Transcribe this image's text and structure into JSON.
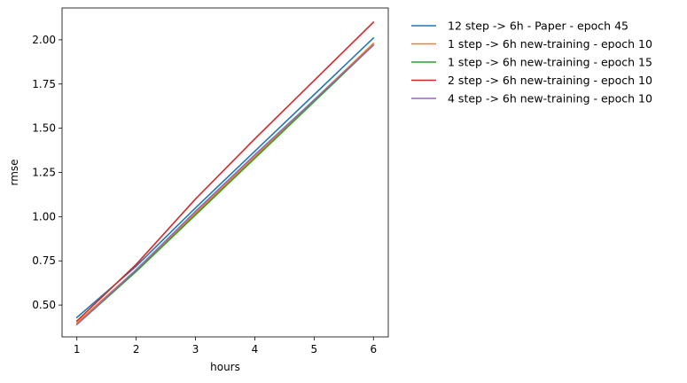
{
  "chart_data": {
    "type": "line",
    "title": "",
    "xlabel": "hours",
    "ylabel": "rmse",
    "xlim": [
      0.75,
      6.25
    ],
    "ylim": [
      0.32,
      2.18
    ],
    "xticks": [
      1,
      2,
      3,
      4,
      5,
      6
    ],
    "xtick_labels": [
      "1",
      "2",
      "3",
      "4",
      "5",
      "6"
    ],
    "yticks": [
      0.5,
      0.75,
      1.0,
      1.25,
      1.5,
      1.75,
      2.0
    ],
    "ytick_labels": [
      "0.50",
      "0.75",
      "1.00",
      "1.25",
      "1.50",
      "1.75",
      "2.00"
    ],
    "grid": false,
    "legend_position": "outside right, top",
    "x": [
      1,
      2,
      3,
      4,
      5,
      6
    ],
    "series": [
      {
        "name": "12 step -> 6h - Paper - epoch 45",
        "color": "#1f77b4",
        "values": [
          0.43,
          0.72,
          1.05,
          1.37,
          1.69,
          2.01
        ]
      },
      {
        "name": "1 step -> 6h new-training - epoch 10",
        "color": "#ff7f0e",
        "values": [
          0.4,
          0.7,
          1.02,
          1.34,
          1.66,
          1.98
        ]
      },
      {
        "name": "1 step -> 6h new-training - epoch 15",
        "color": "#2ca02c",
        "values": [
          0.39,
          0.69,
          1.01,
          1.33,
          1.65,
          1.97
        ]
      },
      {
        "name": "2 step -> 6h new-training - epoch 10",
        "color": "#d62728",
        "values": [
          0.41,
          0.73,
          1.1,
          1.44,
          1.77,
          2.1
        ]
      },
      {
        "name": "4 step -> 6h new-training - epoch 10",
        "color": "#9467bd",
        "values": [
          0.39,
          0.7,
          1.03,
          1.35,
          1.66,
          1.97
        ]
      }
    ]
  }
}
